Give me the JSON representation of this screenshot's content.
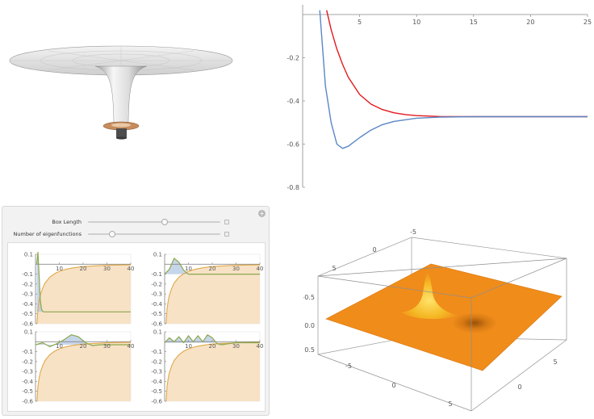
{
  "potential_plot": {
    "chart_data": {
      "type": "line",
      "xlim": [
        0,
        25
      ],
      "ylim": [
        -0.8,
        0
      ],
      "x_ticks": [
        "5",
        "10",
        "15",
        "20",
        "25"
      ],
      "y_ticks": [
        "-0.2",
        "-0.4",
        "-0.6",
        "-0.8"
      ],
      "series": [
        {
          "color": "#e3191c",
          "x": [
            2.1,
            2.5,
            3,
            3.5,
            4,
            5,
            6,
            7,
            8,
            9,
            10,
            12,
            15,
            20,
            25
          ],
          "y": [
            0.02,
            -0.07,
            -0.16,
            -0.23,
            -0.29,
            -0.37,
            -0.415,
            -0.44,
            -0.455,
            -0.463,
            -0.468,
            -0.472,
            -0.473,
            -0.473,
            -0.473
          ]
        },
        {
          "color": "#5a86c4",
          "x": [
            1.5,
            2,
            2.5,
            3,
            3.5,
            4,
            5,
            6,
            7,
            8,
            10,
            12,
            15,
            20,
            25
          ],
          "y": [
            0.02,
            -0.33,
            -0.5,
            -0.6,
            -0.62,
            -0.61,
            -0.57,
            -0.535,
            -0.51,
            -0.495,
            -0.48,
            -0.475,
            -0.473,
            -0.473,
            -0.473
          ]
        }
      ]
    }
  },
  "manipulate": {
    "controls": [
      {
        "label": "Box Length",
        "value": 0.58
      },
      {
        "label": "Number of eigenfunctions",
        "value": 0.18
      }
    ],
    "plots": [
      {
        "x_ticks": [
          "10",
          "20",
          "30",
          "40"
        ],
        "y_ticks": [
          "0.1",
          "-0.1",
          "-0.2",
          "-0.3",
          "-0.4",
          "-0.5",
          "-0.6"
        ],
        "chart_data": {
          "type": "area",
          "xlim": [
            0,
            40
          ],
          "ylim": [
            -0.6,
            0.1
          ],
          "potential": {
            "x": [
              0.6,
              1,
              1.5,
              2,
              3,
              4,
              6,
              8,
              10,
              13,
              16,
              20,
              25,
              30,
              40
            ],
            "y": [
              -0.6,
              -0.45,
              -0.37,
              -0.31,
              -0.24,
              -0.19,
              -0.13,
              -0.095,
              -0.072,
              -0.05,
              -0.036,
              -0.024,
              -0.016,
              -0.011,
              -0.006
            ]
          },
          "energy": -0.48,
          "wavefunction": {
            "x": [
              0.5,
              1,
              1.5,
              2,
              2.5,
              3,
              3.5,
              4,
              5,
              40
            ],
            "y": [
              0.0,
              0.12,
              -0.1,
              -0.36,
              -0.45,
              -0.475,
              -0.48,
              -0.48,
              -0.48,
              -0.48
            ]
          }
        }
      },
      {
        "x_ticks": [
          "10",
          "20",
          "30",
          "40"
        ],
        "y_ticks": [
          "0.1",
          "-0.1",
          "-0.2",
          "-0.3",
          "-0.4",
          "-0.5",
          "-0.6"
        ],
        "chart_data": {
          "type": "area",
          "xlim": [
            0,
            40
          ],
          "ylim": [
            -0.6,
            0.1
          ],
          "potential": {
            "x": [
              0.6,
              1,
              1.5,
              2,
              3,
              4,
              6,
              8,
              10,
              13,
              16,
              20,
              25,
              30,
              40
            ],
            "y": [
              -0.6,
              -0.45,
              -0.37,
              -0.31,
              -0.24,
              -0.19,
              -0.13,
              -0.095,
              -0.072,
              -0.05,
              -0.036,
              -0.024,
              -0.016,
              -0.011,
              -0.006
            ]
          },
          "energy": -0.1,
          "wavefunction": {
            "x": [
              0,
              2,
              4,
              6,
              8,
              10,
              12,
              14,
              40
            ],
            "y": [
              -0.1,
              -0.05,
              0.06,
              0.02,
              -0.06,
              -0.1,
              -0.1,
              -0.1,
              -0.1
            ]
          }
        }
      },
      {
        "x_ticks": [
          "10",
          "20",
          "30",
          "40"
        ],
        "y_ticks": [
          "0.1",
          "-0.1",
          "-0.2",
          "-0.3",
          "-0.4",
          "-0.5",
          "-0.6"
        ],
        "chart_data": {
          "type": "area",
          "xlim": [
            0,
            40
          ],
          "ylim": [
            -0.6,
            0.1
          ],
          "potential": {
            "x": [
              0.6,
              1,
              1.5,
              2,
              3,
              4,
              6,
              8,
              10,
              13,
              16,
              20,
              25,
              30,
              40
            ],
            "y": [
              -0.6,
              -0.45,
              -0.37,
              -0.31,
              -0.24,
              -0.19,
              -0.13,
              -0.095,
              -0.072,
              -0.05,
              -0.036,
              -0.024,
              -0.016,
              -0.011,
              -0.006
            ]
          },
          "energy": -0.03,
          "wavefunction": {
            "x": [
              0,
              3,
              6,
              9,
              12,
              15,
              18,
              21,
              24,
              27,
              30,
              40
            ],
            "y": [
              -0.03,
              -0.01,
              -0.05,
              -0.02,
              0.02,
              0.07,
              0.05,
              -0.01,
              -0.04,
              -0.03,
              -0.03,
              -0.03
            ]
          }
        }
      },
      {
        "x_ticks": [
          "10",
          "20",
          "30",
          "40"
        ],
        "y_ticks": [
          "0.1",
          "-0.1",
          "-0.2",
          "-0.3",
          "-0.4",
          "-0.5",
          "-0.6"
        ],
        "chart_data": {
          "type": "area",
          "xlim": [
            0,
            40
          ],
          "ylim": [
            -0.6,
            0.1
          ],
          "potential": {
            "x": [
              0.6,
              1,
              1.5,
              2,
              3,
              4,
              6,
              8,
              10,
              13,
              16,
              20,
              25,
              30,
              40
            ],
            "y": [
              -0.6,
              -0.45,
              -0.37,
              -0.31,
              -0.24,
              -0.19,
              -0.13,
              -0.095,
              -0.072,
              -0.05,
              -0.036,
              -0.024,
              -0.016,
              -0.011,
              -0.006
            ]
          },
          "energy": -0.01,
          "wavefunction": {
            "x": [
              0,
              2,
              4,
              6,
              8,
              10,
              12,
              14,
              16,
              18,
              20,
              22,
              24,
              27,
              30,
              40
            ],
            "y": [
              -0.01,
              0.04,
              0.0,
              0.05,
              -0.01,
              0.06,
              0.0,
              0.06,
              0.0,
              0.07,
              0.04,
              -0.02,
              -0.03,
              -0.02,
              -0.01,
              -0.01
            ]
          }
        }
      }
    ]
  },
  "surface_plot": {
    "left_axis_ticks": [
      "-0.5",
      "0.0",
      "0.5"
    ],
    "top_axis_ticks": [
      "-5",
      "0",
      "5"
    ],
    "bottom_x_ticks": [
      "-5",
      "0",
      "5"
    ],
    "bottom_y_ticks": [
      "0",
      "5"
    ],
    "plane_color": "#f08c1a",
    "peak_color": "#f5c021",
    "well_color": "#a85c0c"
  },
  "colors": {
    "potential_fill": "#f7e2c6",
    "potential_line": "#e0a94a",
    "wavefunction_line": "#8aa84a",
    "wavefunction_fill": "#b4c7e3",
    "frame": "#7a7a7a"
  }
}
